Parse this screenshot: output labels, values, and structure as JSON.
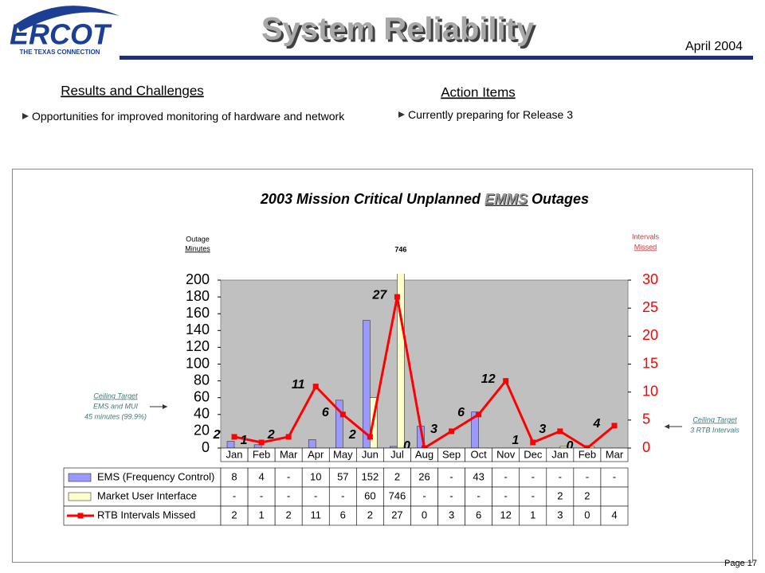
{
  "header": {
    "logo": "ERCOT",
    "logo_tagline": "THE TEXAS CONNECTION",
    "title": "System Reliability",
    "date": "April 2004"
  },
  "left": {
    "heading": "Results and Challenges",
    "bullet": "Opportunities for improved monitoring of hardware and network"
  },
  "right": {
    "heading": "Action Items",
    "bullet": "Currently preparing for Release 3"
  },
  "footer": "Page 17",
  "chart_data": {
    "type": "bar_line",
    "title_prefix": "2003 Mission Critical Unplanned",
    "title_emphasis": "EMMS",
    "title_suffix": "Outages",
    "y_label": [
      "Outage",
      "Minutes"
    ],
    "y2_label": [
      "Intervals",
      "Missed"
    ],
    "annotation_left": [
      "Ceiling Target",
      "EMS and MUI",
      "45 minutes (99.9%)"
    ],
    "annotation_right": [
      "Ceiling Target",
      "3 RTB Intervals"
    ],
    "categories": [
      "Jan",
      "Feb",
      "Mar",
      "Apr",
      "May",
      "Jun",
      "Jul",
      "Aug",
      "Sep",
      "Oct",
      "Nov",
      "Dec",
      "Jan",
      "Feb",
      "Mar"
    ],
    "ylim": [
      0,
      200
    ],
    "yticks": [
      0,
      20,
      40,
      60,
      80,
      100,
      120,
      140,
      160,
      180,
      200
    ],
    "y2lim": [
      0,
      30
    ],
    "y2ticks": [
      0,
      5,
      10,
      15,
      20,
      25,
      30
    ],
    "grid": false,
    "series": [
      {
        "name": "EMS (Frequency Control)",
        "type": "bar",
        "color": "#9999ff",
        "values": [
          8,
          4,
          null,
          10,
          57,
          152,
          2,
          26,
          null,
          43,
          null,
          null,
          null,
          null,
          null
        ],
        "value_labels": [
          "8",
          "4",
          "-",
          "10",
          "57",
          "152",
          "2",
          "26",
          "-",
          "43",
          "-",
          "-",
          "-",
          "-",
          "-"
        ]
      },
      {
        "name": "Market User Interface",
        "type": "bar",
        "color": "#ffffcc",
        "values": [
          null,
          null,
          null,
          null,
          null,
          60,
          746,
          null,
          null,
          null,
          null,
          null,
          2,
          2,
          null
        ],
        "value_labels": [
          "-",
          "-",
          "-",
          "-",
          "-",
          "60",
          "746",
          "-",
          "-",
          "-",
          "-",
          "-",
          "2",
          "2",
          null
        ]
      },
      {
        "name": "RTB Intervals Missed",
        "type": "line",
        "axis": "y2",
        "color": "#ff0000",
        "values": [
          2,
          1,
          2,
          11,
          6,
          2,
          27,
          0,
          3,
          6,
          12,
          1,
          3,
          0,
          4
        ]
      }
    ]
  }
}
